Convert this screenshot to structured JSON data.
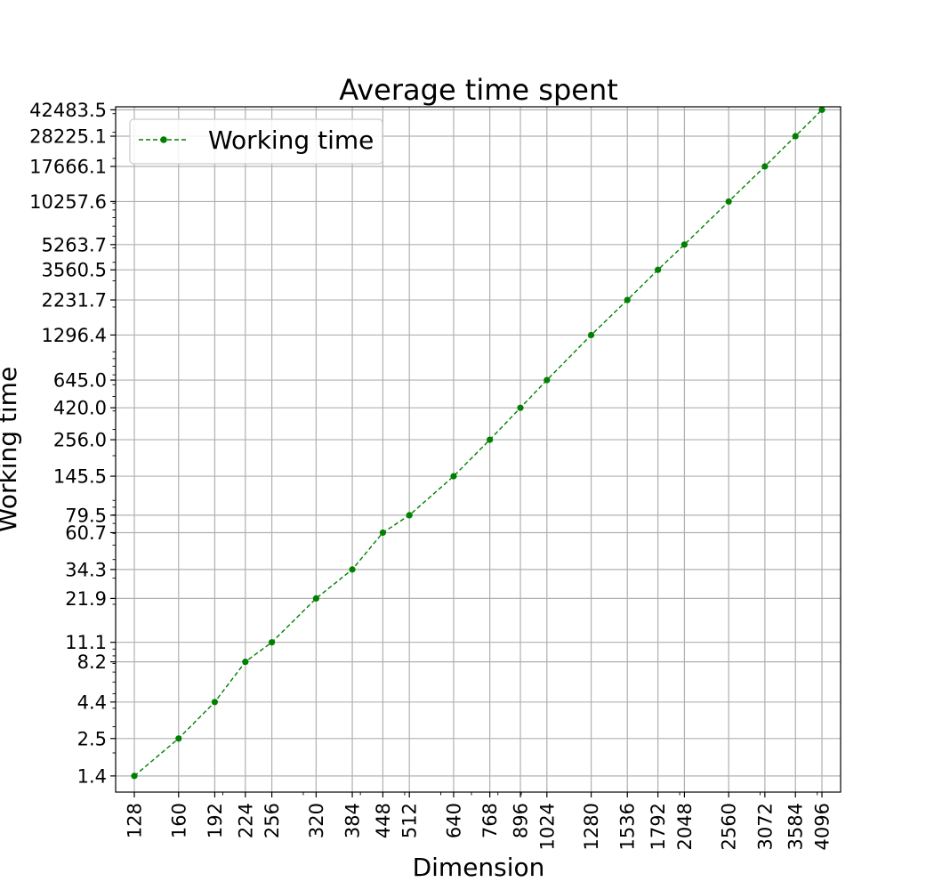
{
  "chart_data": {
    "type": "line",
    "title": "Average time spent",
    "xlabel": "Dimension",
    "ylabel": "Working time",
    "x_scale": "log",
    "y_scale": "log",
    "grid": true,
    "legend_position": "top-left",
    "x": [
      128,
      160,
      192,
      224,
      256,
      320,
      384,
      448,
      512,
      640,
      768,
      896,
      1024,
      1280,
      1536,
      1792,
      2048,
      2560,
      3072,
      3584,
      4096
    ],
    "x_tick_labels": [
      "128",
      "160",
      "192",
      "224",
      "256",
      "320",
      "384",
      "448",
      "512",
      "640",
      "768",
      "896",
      "1024",
      "1280",
      "1536",
      "1792",
      "2048",
      "2560",
      "3072",
      "3584",
      "4096"
    ],
    "y_ticks": [
      1.4,
      2.5,
      4.4,
      8.2,
      11.1,
      21.9,
      34.3,
      60.7,
      79.5,
      145.5,
      256.0,
      420.0,
      645.0,
      1296.4,
      2231.7,
      3560.5,
      5263.7,
      10257.6,
      17666.1,
      28225.1,
      42483.5
    ],
    "y_tick_labels": [
      "1.4",
      "2.5",
      "4.4",
      "8.2",
      "11.1",
      "21.9",
      "34.3",
      "60.7",
      "79.5",
      "145.5",
      "256.0",
      "420.0",
      "645.0",
      "1296.4",
      "2231.7",
      "3560.5",
      "5263.7",
      "10257.6",
      "17666.1",
      "28225.1",
      "42483.5"
    ],
    "series": [
      {
        "name": "Working time",
        "color": "#008000",
        "line_style": "dashed",
        "marker": "circle",
        "values": [
          1.4,
          2.5,
          4.4,
          8.2,
          11.1,
          21.9,
          34.3,
          60.7,
          79.5,
          145.5,
          256.0,
          420.0,
          645.0,
          1296.4,
          2231.7,
          3560.5,
          5263.7,
          10257.6,
          17666.1,
          28225.1,
          42483.5
        ]
      }
    ]
  }
}
